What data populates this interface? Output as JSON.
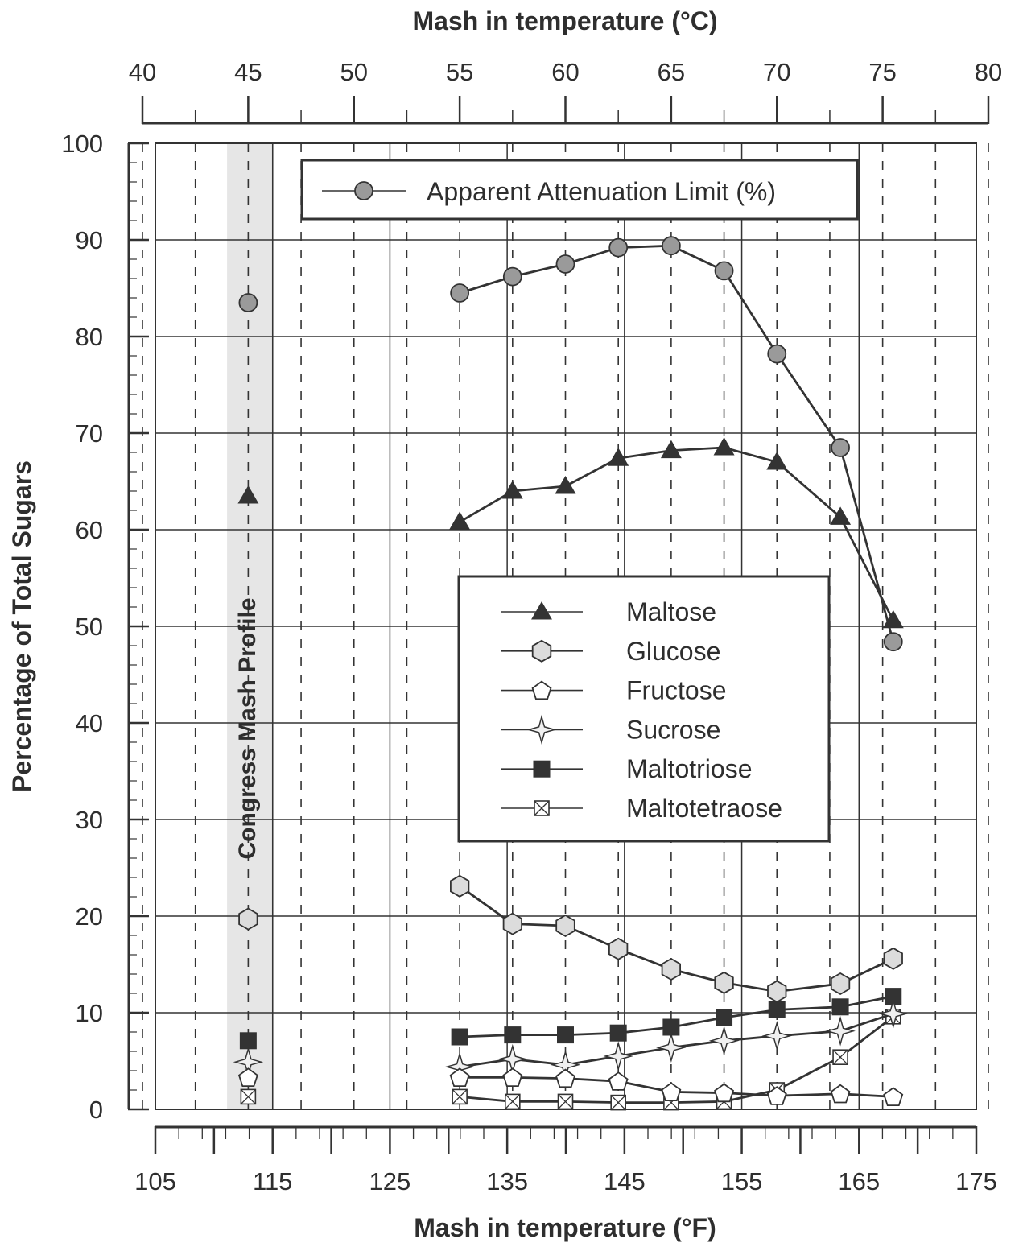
{
  "chart_data": {
    "type": "line",
    "title": "",
    "top_axis": {
      "label": "Mash in temperature (°C)",
      "range": [
        40,
        80
      ],
      "ticks": [
        40,
        45,
        50,
        55,
        60,
        65,
        70,
        75,
        80
      ]
    },
    "bottom_axis": {
      "label": "Mash in temperature (°F)",
      "range": [
        105,
        175
      ],
      "ticks": [
        105,
        115,
        125,
        135,
        145,
        155,
        165,
        175
      ]
    },
    "y_axis": {
      "label": "Percentage of Total Sugars",
      "range": [
        0,
        100
      ],
      "ticks": [
        0,
        10,
        20,
        30,
        40,
        50,
        60,
        70,
        80,
        90,
        100
      ]
    },
    "grid": true,
    "band": {
      "label": "Congress Mash Profile",
      "range_c": [
        44,
        46.2
      ]
    },
    "congress_values": {
      "Apparent Attenuation Limit (%)": 83.5,
      "Maltose": 63.5,
      "Glucose": 19.7,
      "Fructose": 3.3,
      "Sucrose": 4.9,
      "Maltotriose": 7.1,
      "Maltotetraose": 1.3
    },
    "x_c": [
      55,
      57.5,
      60,
      62.5,
      65,
      67.5,
      70,
      73,
      75.5
    ],
    "series": [
      {
        "name": "Apparent Attenuation Limit (%)",
        "marker": "circle",
        "values": [
          84.5,
          86.2,
          87.5,
          89.2,
          89.4,
          86.8,
          78.2,
          68.5,
          48.4
        ]
      },
      {
        "name": "Maltose",
        "marker": "triangle",
        "values": [
          60.8,
          64.0,
          64.5,
          67.4,
          68.2,
          68.5,
          67.0,
          61.3,
          50.6
        ]
      },
      {
        "name": "Glucose",
        "marker": "hexagon",
        "values": [
          23.1,
          19.2,
          19.0,
          16.6,
          14.5,
          13.1,
          12.2,
          13.0,
          15.6
        ]
      },
      {
        "name": "Fructose",
        "marker": "pentagon",
        "values": [
          3.3,
          3.3,
          3.2,
          2.9,
          1.8,
          1.7,
          1.4,
          1.6,
          1.3
        ]
      },
      {
        "name": "Sucrose",
        "marker": "star",
        "values": [
          4.4,
          5.2,
          4.6,
          5.5,
          6.4,
          7.1,
          7.6,
          8.1,
          9.9
        ]
      },
      {
        "name": "Maltotriose",
        "marker": "square",
        "values": [
          7.5,
          7.7,
          7.7,
          7.9,
          8.5,
          9.5,
          10.3,
          10.6,
          11.7
        ]
      },
      {
        "name": "Maltotetraose",
        "marker": "xsquare",
        "values": [
          1.3,
          0.8,
          0.8,
          0.7,
          0.7,
          0.8,
          2.0,
          5.4,
          9.6
        ]
      }
    ],
    "legends": [
      {
        "placement": "top",
        "entries": [
          "Apparent Attenuation Limit (%)"
        ]
      },
      {
        "placement": "center",
        "entries": [
          "Maltose",
          "Glucose",
          "Fructose",
          "Sucrose",
          "Maltotriose",
          "Maltotetraose"
        ]
      }
    ],
    "colors": {
      "line": "#333333",
      "grid": "#333333",
      "band": "#e6e6e6",
      "circle_fill": "#9a9a9a",
      "hexagon_fill": "#dcdcdc",
      "pentagon_fill": "#ffffff",
      "star_fill": "#f0f0f0",
      "square_fill": "#333333",
      "xsquare_fill": "#ffffff"
    }
  }
}
